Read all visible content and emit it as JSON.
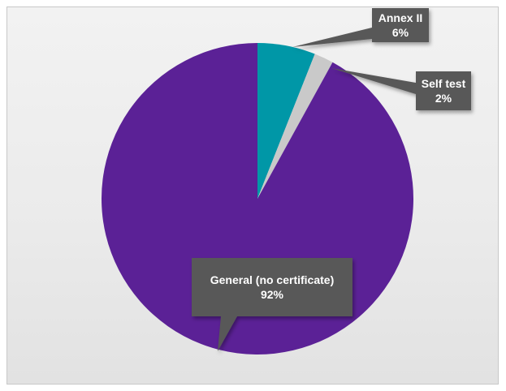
{
  "chart_data": {
    "type": "pie",
    "title": "",
    "slices": [
      {
        "label": "Annex II",
        "value": 6,
        "value_label": "6%",
        "color": "#0097a7"
      },
      {
        "label": "Self test",
        "value": 2,
        "value_label": "2%",
        "color": "#c9c9c9"
      },
      {
        "label": "General (no certificate)",
        "value": 92,
        "value_label": "92%",
        "color": "#5b2196"
      }
    ],
    "data_labels": "callouts",
    "legend": "none",
    "callout_color": "#595959"
  }
}
